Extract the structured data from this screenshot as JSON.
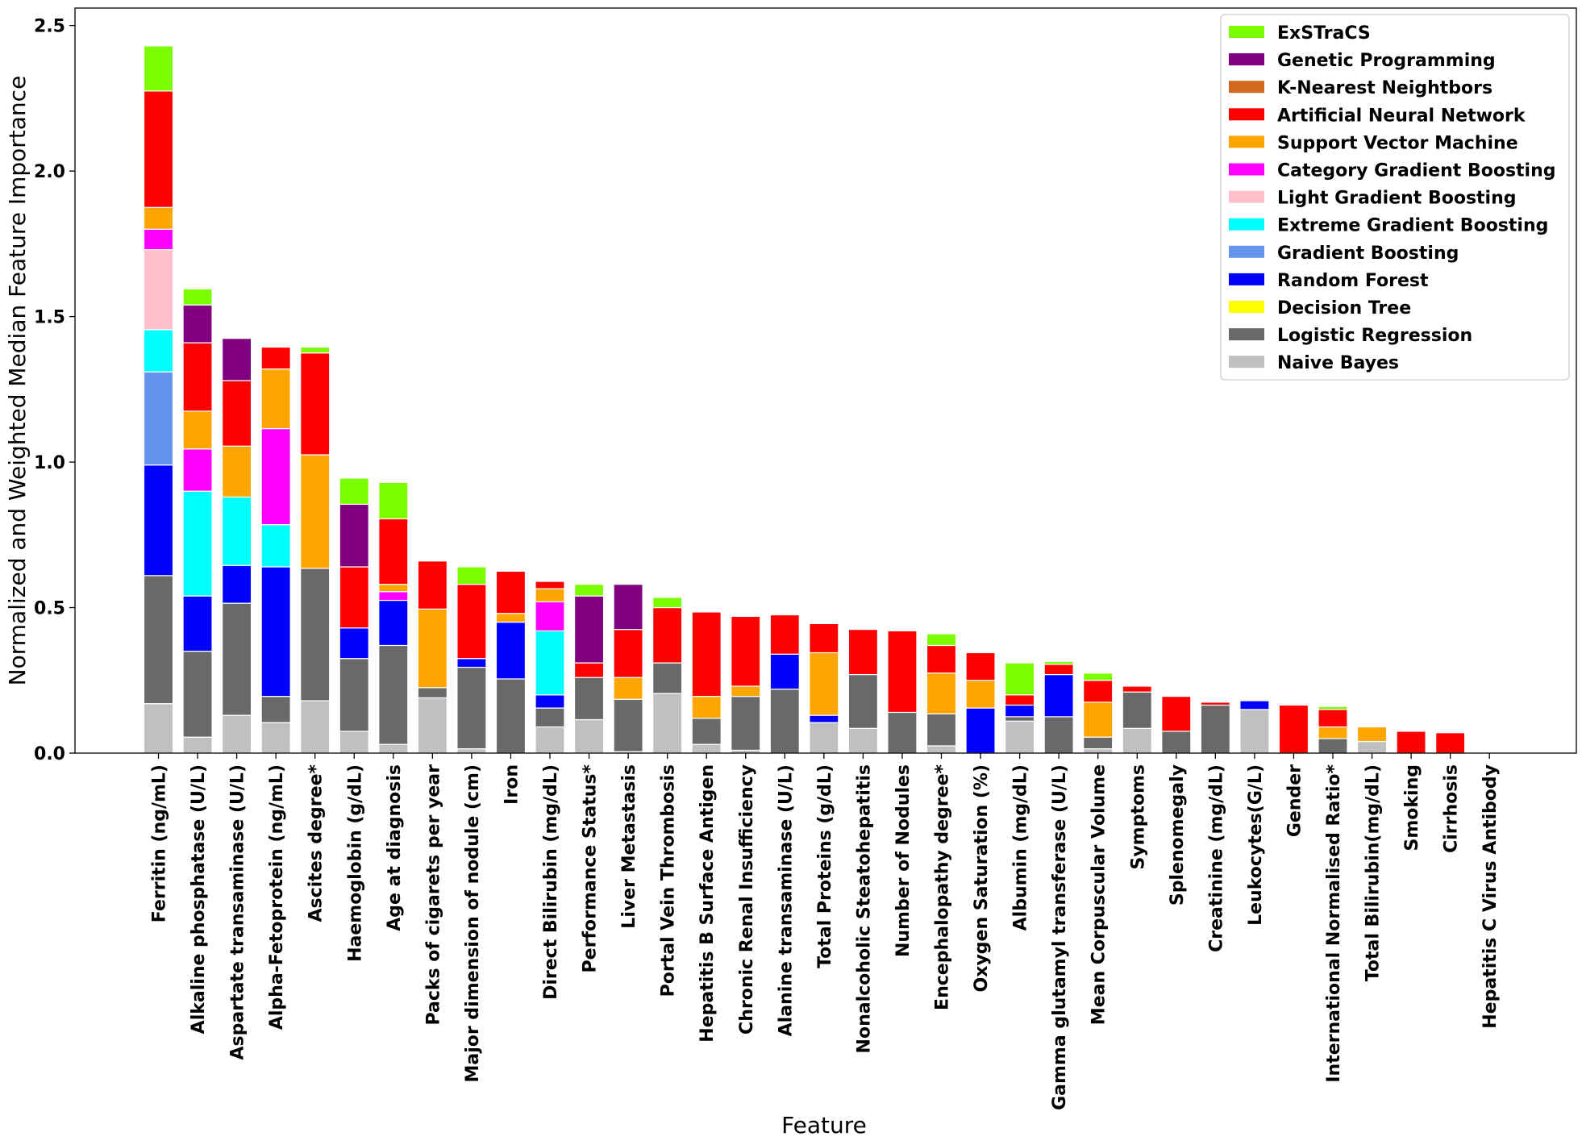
{
  "chart_data": {
    "type": "bar",
    "stacked": true,
    "title": "",
    "xlabel": "Feature",
    "ylabel": "Normalized and Weighted Median Feature Importance",
    "ylim": [
      0,
      2.56
    ],
    "yticks": [
      0.0,
      0.5,
      1.0,
      1.5,
      2.0,
      2.5
    ],
    "ytick_labels": [
      "0.0",
      "0.5",
      "1.0",
      "1.5",
      "2.0",
      "2.5"
    ],
    "legend_position": "top-right",
    "categories": [
      "Ferritin (ng/mL)",
      "Alkaline phosphatase (U/L)",
      "Aspartate transaminase (U/L)",
      "Alpha-Fetoprotein (ng/mL)",
      "Ascites degree*",
      "Haemoglobin (g/dL)",
      "Age at diagnosis",
      "Packs of cigarets per year",
      "Major dimension of nodule (cm)",
      "Iron",
      "Direct Bilirubin (mg/dL)",
      "Performance Status*",
      "Liver Metastasis",
      "Portal Vein Thrombosis",
      "Hepatitis B Surface Antigen",
      "Chronic Renal Insufficiency",
      "Alanine transaminase (U/L)",
      "Total Proteins (g/dL)",
      "Nonalcoholic Steatohepatitis",
      "Number of Nodules",
      "Encephalopathy degree*",
      "Oxygen Saturation (%)",
      "Albumin (mg/dL)",
      "Gamma glutamyl transferase (U/L)",
      "Mean Corpuscular Volume",
      "Symptoms",
      "Splenomegaly",
      "Creatinine (mg/dL)",
      "Leukocytes(G/L)",
      "Gender",
      "International Normalised Ratio*",
      "Total Bilirubin(mg/dL)",
      "Smoking",
      "Cirrhosis",
      "Hepatitis C Virus Antibody"
    ],
    "series": [
      {
        "name": "Naive Bayes",
        "color": "#c0c0c0",
        "values": [
          0.17,
          0.055,
          0.13,
          0.105,
          0.18,
          0.075,
          0.03,
          0.19,
          0.015,
          0,
          0.09,
          0.115,
          0.005,
          0.205,
          0.03,
          0.01,
          0,
          0.105,
          0.085,
          0,
          0.025,
          0,
          0.11,
          0,
          0.015,
          0.085,
          0,
          0,
          0.15,
          0,
          0,
          0.04,
          0,
          0,
          0
        ]
      },
      {
        "name": "Logistic Regression",
        "color": "#696969",
        "values": [
          0.44,
          0.295,
          0.385,
          0.09,
          0.455,
          0.25,
          0.34,
          0.035,
          0.28,
          0.255,
          0.065,
          0.145,
          0.18,
          0.105,
          0.09,
          0.185,
          0.22,
          0,
          0.185,
          0.14,
          0.11,
          0,
          0.015,
          0.125,
          0.04,
          0.125,
          0.075,
          0.165,
          0,
          0,
          0.05,
          0,
          0,
          0,
          0
        ]
      },
      {
        "name": "Decision Tree",
        "color": "#ffff00",
        "values": [
          0,
          0,
          0,
          0,
          0,
          0,
          0,
          0,
          0,
          0,
          0,
          0,
          0,
          0,
          0,
          0,
          0,
          0,
          0,
          0,
          0,
          0,
          0,
          0,
          0,
          0,
          0,
          0,
          0,
          0,
          0,
          0,
          0,
          0,
          0
        ]
      },
      {
        "name": "Random Forest",
        "color": "#0000ff",
        "values": [
          0.38,
          0.19,
          0.13,
          0.445,
          0,
          0.105,
          0.155,
          0,
          0.03,
          0.195,
          0.045,
          0,
          0,
          0,
          0,
          0,
          0.12,
          0.025,
          0,
          0,
          0,
          0.155,
          0.04,
          0.145,
          0,
          0,
          0,
          0,
          0.03,
          0,
          0,
          0,
          0,
          0,
          0
        ]
      },
      {
        "name": "Gradient Boosting",
        "color": "#6495ed",
        "values": [
          0.32,
          0,
          0,
          0,
          0,
          0,
          0,
          0,
          0,
          0,
          0,
          0,
          0,
          0,
          0,
          0,
          0,
          0,
          0,
          0,
          0,
          0,
          0,
          0,
          0,
          0,
          0,
          0,
          0,
          0,
          0,
          0,
          0,
          0,
          0
        ]
      },
      {
        "name": "Extreme Gradient Boosting",
        "color": "#00ffff",
        "values": [
          0.145,
          0.36,
          0.235,
          0.145,
          0,
          0,
          0,
          0,
          0,
          0,
          0.22,
          0,
          0,
          0,
          0,
          0,
          0,
          0,
          0,
          0,
          0,
          0,
          0,
          0,
          0,
          0,
          0,
          0,
          0,
          0,
          0,
          0,
          0,
          0,
          0
        ]
      },
      {
        "name": "Light Gradient Boosting",
        "color": "#ffc0cb",
        "values": [
          0.275,
          0,
          0,
          0,
          0,
          0,
          0,
          0,
          0,
          0,
          0,
          0,
          0,
          0,
          0,
          0,
          0,
          0,
          0,
          0,
          0,
          0,
          0,
          0,
          0,
          0,
          0,
          0,
          0,
          0,
          0,
          0,
          0,
          0,
          0
        ]
      },
      {
        "name": "Category Gradient Boosting",
        "color": "#ff00ff",
        "values": [
          0.07,
          0.145,
          0,
          0.33,
          0,
          0,
          0.03,
          0,
          0,
          0,
          0.1,
          0,
          0,
          0,
          0,
          0,
          0,
          0,
          0,
          0,
          0,
          0,
          0,
          0,
          0,
          0,
          0,
          0,
          0,
          0,
          0,
          0,
          0,
          0,
          0
        ]
      },
      {
        "name": "Support Vector Machine",
        "color": "#ffa500",
        "values": [
          0.075,
          0.13,
          0.175,
          0.205,
          0.39,
          0,
          0.025,
          0.27,
          0,
          0.03,
          0.045,
          0,
          0.075,
          0,
          0.075,
          0.035,
          0,
          0.215,
          0,
          0,
          0.14,
          0.095,
          0,
          0,
          0.12,
          0,
          0,
          0,
          0,
          0,
          0.04,
          0.05,
          0,
          0,
          0
        ]
      },
      {
        "name": "Artificial Neural Network",
        "color": "#ff0000",
        "values": [
          0.4,
          0.235,
          0.225,
          0.075,
          0.35,
          0.21,
          0.225,
          0.165,
          0.255,
          0.145,
          0.025,
          0.05,
          0.165,
          0.19,
          0.29,
          0.24,
          0.135,
          0.1,
          0.155,
          0.28,
          0.095,
          0.095,
          0.035,
          0.035,
          0.075,
          0.02,
          0.12,
          0.01,
          0,
          0.165,
          0.06,
          0,
          0.075,
          0.07,
          0
        ]
      },
      {
        "name": "K-Nearest Neightbors",
        "color": "#d2691e",
        "values": [
          0,
          0,
          0,
          0,
          0,
          0,
          0,
          0,
          0,
          0,
          0,
          0,
          0,
          0,
          0,
          0,
          0,
          0,
          0,
          0,
          0,
          0,
          0,
          0,
          0,
          0,
          0,
          0,
          0,
          0,
          0,
          0,
          0,
          0,
          0
        ]
      },
      {
        "name": "Genetic Programming",
        "color": "#800080",
        "values": [
          0,
          0.13,
          0.145,
          0,
          0,
          0.215,
          0,
          0,
          0,
          0,
          0,
          0.23,
          0.155,
          0,
          0,
          0,
          0,
          0,
          0,
          0,
          0,
          0,
          0,
          0,
          0,
          0,
          0,
          0,
          0,
          0,
          0,
          0,
          0,
          0,
          0
        ]
      },
      {
        "name": "ExSTraCS",
        "color": "#7cfc00",
        "values": [
          0.155,
          0.055,
          0,
          0,
          0.02,
          0.09,
          0.125,
          0,
          0.06,
          0,
          0,
          0.04,
          0,
          0.035,
          0,
          0,
          0,
          0,
          0,
          0,
          0.04,
          0,
          0.11,
          0.01,
          0.025,
          0,
          0,
          0,
          0,
          0,
          0.01,
          0,
          0,
          0,
          0
        ]
      }
    ],
    "legend_order": [
      "ExSTraCS",
      "Genetic Programming",
      "K-Nearest Neightbors",
      "Artificial Neural Network",
      "Support Vector Machine",
      "Category Gradient Boosting",
      "Light Gradient Boosting",
      "Extreme Gradient Boosting",
      "Gradient Boosting",
      "Random Forest",
      "Decision Tree",
      "Logistic Regression",
      "Naive Bayes"
    ]
  }
}
